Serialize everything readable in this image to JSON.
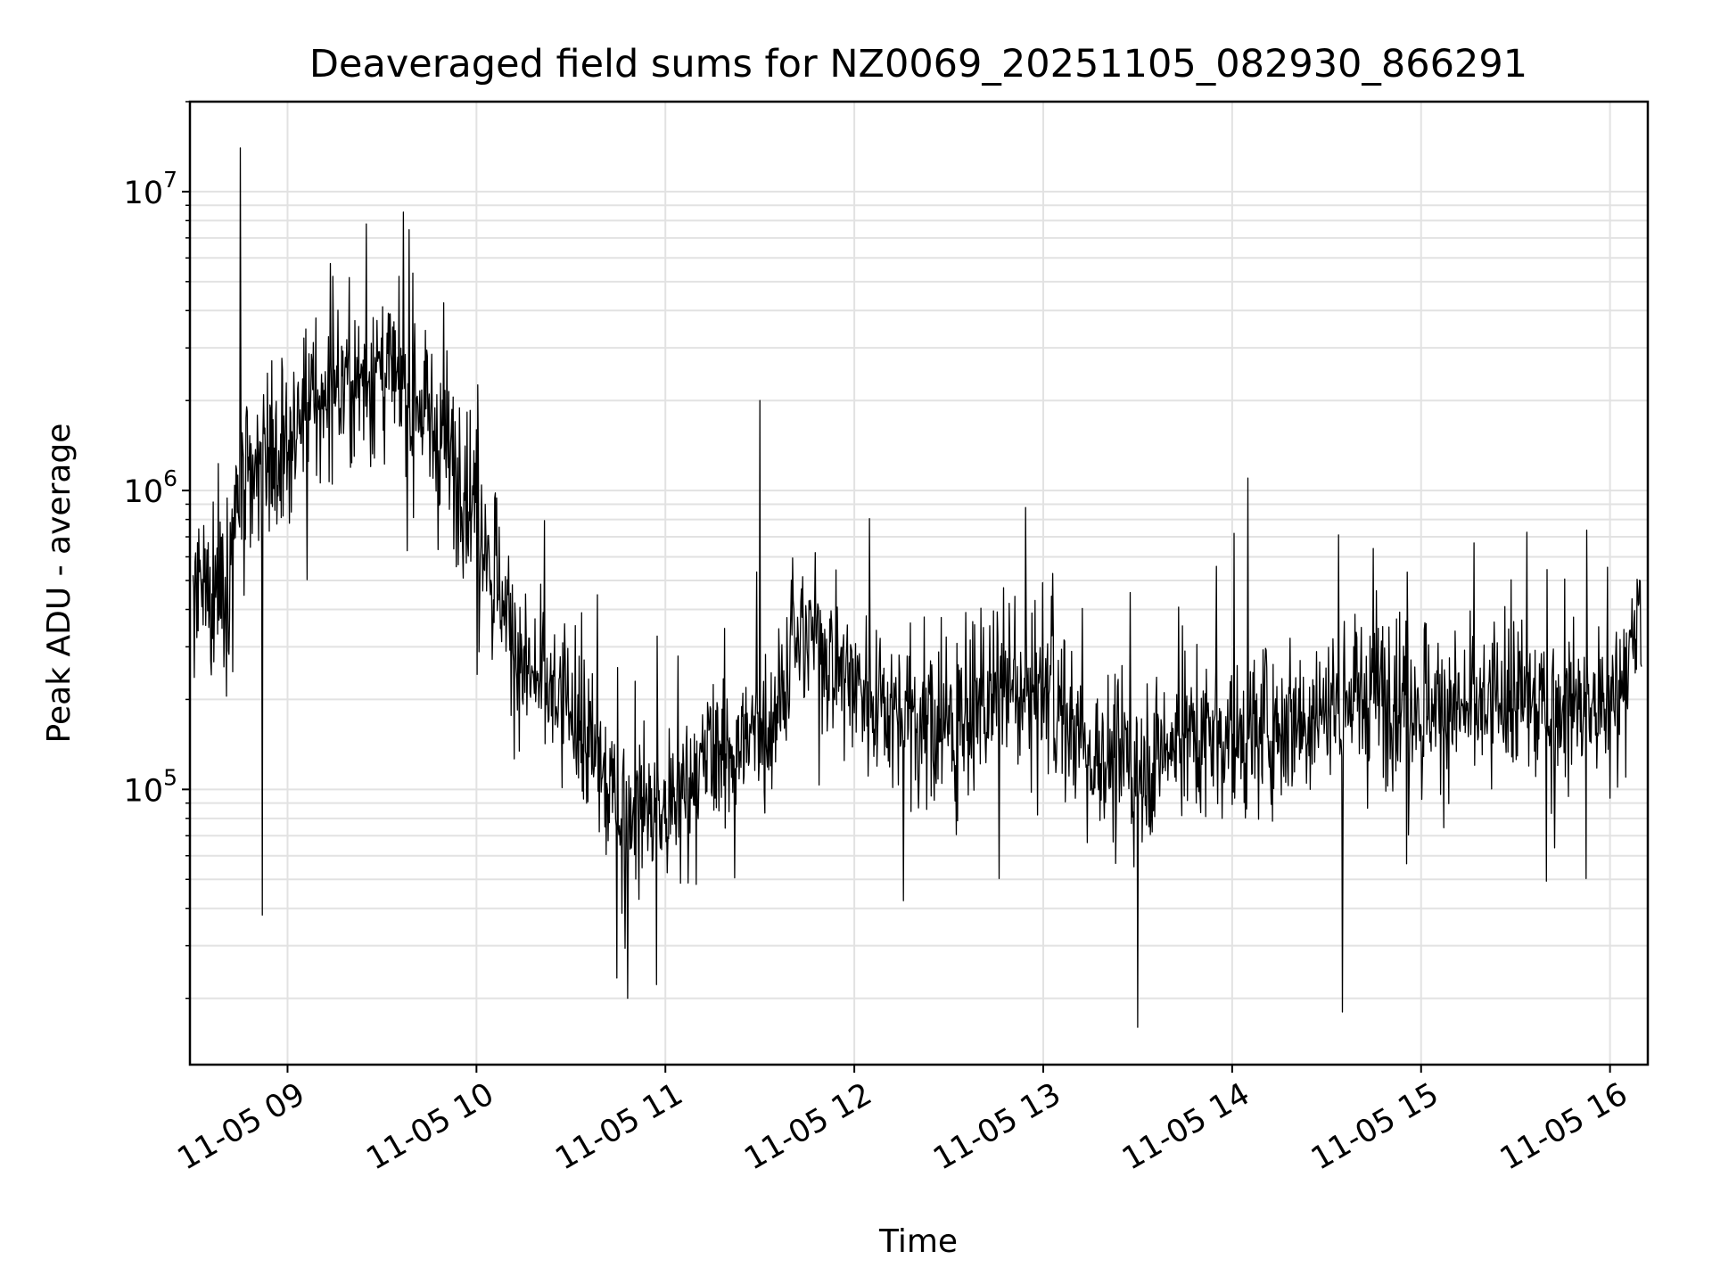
{
  "chart_data": {
    "type": "line",
    "title": "Deaveraged field sums for NZ0069_20251105_082930_866291",
    "xlabel": "Time",
    "ylabel": "Peak ADU - average",
    "y_scale": "log",
    "grid": true,
    "x_range": [
      "11-05 08:29",
      "11-05 16:12"
    ],
    "ylim": [
      12000,
      20000000
    ],
    "x_ticks": [
      "11-05 09",
      "11-05 10",
      "11-05 11",
      "11-05 12",
      "11-05 13",
      "11-05 14",
      "11-05 15",
      "11-05 16"
    ],
    "y_ticks": [
      {
        "base": "10",
        "exp": "5",
        "value": 100000
      },
      {
        "base": "10",
        "exp": "6",
        "value": 1000000
      },
      {
        "base": "10",
        "exp": "7",
        "value": 10000000
      }
    ],
    "line_color": "#000000",
    "series": [
      {
        "x": [
          "11-05 08:30",
          "11-05 08:40",
          "11-05 08:45",
          "11-05 09:00",
          "11-05 09:15",
          "11-05 09:30",
          "11-05 09:45",
          "11-05 10:00",
          "11-05 10:15",
          "11-05 10:30",
          "11-05 10:45",
          "11-05 11:00",
          "11-05 11:15",
          "11-05 11:30",
          "11-05 11:45",
          "11-05 12:00",
          "11-05 12:15",
          "11-05 12:30",
          "11-05 12:45",
          "11-05 13:00",
          "11-05 13:15",
          "11-05 13:30",
          "11-05 13:45",
          "11-05 14:00",
          "11-05 14:15",
          "11-05 14:30",
          "11-05 14:45",
          "11-05 15:00",
          "11-05 15:15",
          "11-05 15:30",
          "11-05 15:45",
          "11-05 16:00",
          "11-05 16:10"
        ],
        "y": [
          400000,
          500000,
          900000,
          1500000,
          2200000,
          2500000,
          1800000,
          900000,
          250000,
          180000,
          90000,
          80000,
          130000,
          150000,
          350000,
          230000,
          180000,
          160000,
          200000,
          230000,
          130000,
          120000,
          150000,
          150000,
          170000,
          190000,
          220000,
          200000,
          180000,
          200000,
          190000,
          180000,
          350000
        ]
      }
    ],
    "spikes": [
      {
        "x": "11-05 08:45",
        "y": 14000000
      },
      {
        "x": "11-05 08:52",
        "y": 38000
      },
      {
        "x": "11-05 09:25",
        "y": 7800000
      },
      {
        "x": "11-05 10:48",
        "y": 20000
      },
      {
        "x": "11-05 11:30",
        "y": 2000000
      },
      {
        "x": "11-05 13:30",
        "y": 16000
      },
      {
        "x": "11-05 14:05",
        "y": 1100000
      },
      {
        "x": "11-05 14:35",
        "y": 18000
      }
    ]
  }
}
